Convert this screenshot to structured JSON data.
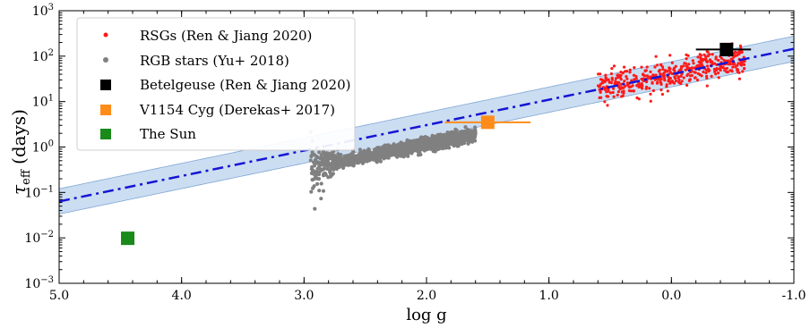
{
  "chart_data": {
    "type": "scatter",
    "xlabel": "log g",
    "ylabel_main": "τ",
    "ylabel_sub": "eff",
    "ylabel_unit": "(days)",
    "x_reversed": true,
    "xlim": [
      5.0,
      -1.0
    ],
    "ylim": [
      0.001,
      1000
    ],
    "y_log": true,
    "x_ticks": [
      "5.0",
      "4.0",
      "3.0",
      "2.0",
      "1.0",
      "0.0",
      "-1.0"
    ],
    "y_ticks": [
      {
        "base": "10",
        "exp": "3"
      },
      {
        "base": "10",
        "exp": "2"
      },
      {
        "base": "10",
        "exp": "1"
      },
      {
        "base": "10",
        "exp": "0"
      },
      {
        "base": "10",
        "exp": "−1"
      },
      {
        "base": "10",
        "exp": "−2"
      },
      {
        "base": "10",
        "exp": "−3"
      }
    ],
    "legend_position": "top-left",
    "fit_line": {
      "style": "dash-dot",
      "color": "#1515d6",
      "slope": -0.56,
      "intercept_at_logg_0": 40
    },
    "fit_band": {
      "color": "#a9c6e8",
      "factor": 1.9
    },
    "series": [
      {
        "name": "RSGs (Ren & Jiang 2020)",
        "marker": "dot",
        "color": "#ff1a1a",
        "logg_range": [
          -0.6,
          0.6
        ],
        "n_points": 450
      },
      {
        "name": "RGB stars (Yu+ 2018)",
        "marker": "dot",
        "color": "#808080",
        "logg_range": [
          1.6,
          2.95
        ],
        "n_points": 1500
      },
      {
        "name": "Betelgeuse (Ren & Jiang 2020)",
        "marker": "square",
        "color": "#000000",
        "logg": -0.45,
        "tau": 140,
        "xerr": [
          0.25,
          0.2
        ]
      },
      {
        "name": "V1154 Cyg (Derekas+ 2017)",
        "marker": "square",
        "color": "#ff8c1a",
        "logg": 1.5,
        "tau": 3.5,
        "xerr": [
          0.35,
          0.35
        ]
      },
      {
        "name": "The Sun",
        "marker": "square",
        "color": "#1a8a1a",
        "logg": 4.44,
        "tau": 0.0098
      }
    ]
  }
}
